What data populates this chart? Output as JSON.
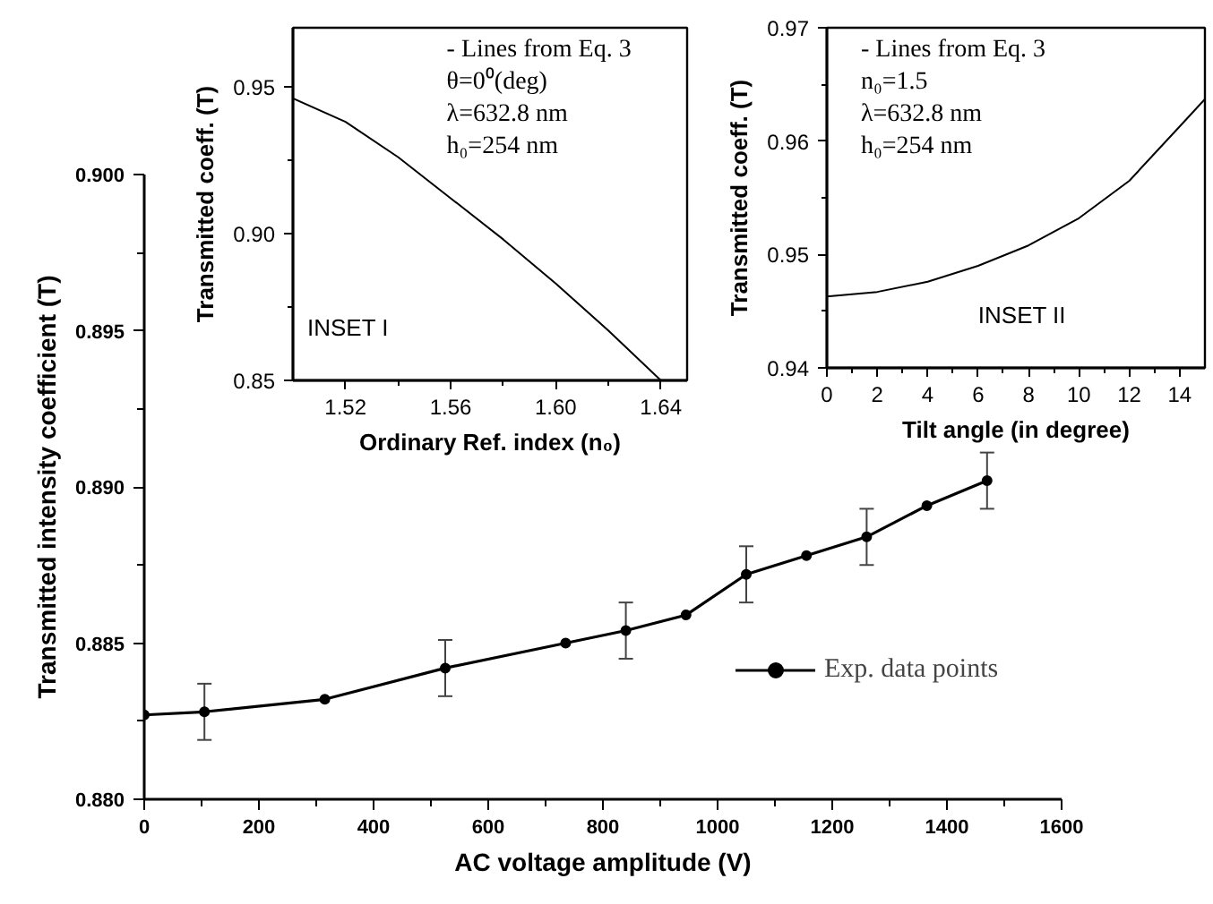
{
  "chart_data": [
    {
      "type": "line",
      "xlabel": "AC voltage amplitude (V)",
      "ylabel": "Transmitted intensity coefficient (T)",
      "x": [
        0,
        105,
        315,
        525,
        735,
        840,
        945,
        1050,
        1155,
        1260,
        1365,
        1470
      ],
      "series": [
        {
          "name": "Exp. data points",
          "color": "#000000",
          "values": [
            0.8827,
            0.8828,
            0.8832,
            0.8842,
            0.885,
            0.8854,
            0.8859,
            0.8872,
            0.8878,
            0.8884,
            0.8894,
            0.8902
          ],
          "errors": [
            null,
            0.0009,
            null,
            0.0009,
            null,
            0.0009,
            null,
            0.0009,
            null,
            0.0009,
            null,
            0.0009
          ]
        }
      ],
      "marker": "circle",
      "legend": "right",
      "xlim": [
        0,
        1600
      ],
      "ylim": [
        0.88,
        0.9
      ],
      "xticks": [
        0,
        {
          "value": 100,
          "label": null
        },
        200,
        {
          "value": 300,
          "label": null
        },
        400,
        {
          "value": 500,
          "label": null
        },
        600,
        {
          "value": 700,
          "label": null
        },
        800,
        {
          "value": 900,
          "label": null
        },
        1000,
        {
          "value": 1100,
          "label": null
        },
        1200,
        {
          "value": 1300,
          "label": null
        },
        1400,
        {
          "value": 1500,
          "label": null
        },
        1600
      ],
      "yticks": [
        {
          "value": 0.88,
          "label": "0.880"
        },
        {
          "value": 0.8825,
          "label": null
        },
        {
          "value": 0.885,
          "label": "0.885"
        },
        {
          "value": 0.8875,
          "label": null
        },
        {
          "value": 0.89,
          "label": "0.890"
        },
        {
          "value": 0.8925,
          "label": null
        },
        0.895,
        {
          "value": 0.8975,
          "label": null
        },
        {
          "value": 0.9,
          "label": "0.900"
        }
      ]
    },
    {
      "type": "line",
      "xlabel": "Ordinary Ref. index (n₀)",
      "ylabel": "Transmitted coeff. (T)",
      "x": [
        1.5,
        1.52,
        1.54,
        1.56,
        1.58,
        1.6,
        1.62,
        1.64
      ],
      "series": [
        {
          "color": "#000000",
          "values": [
            0.946,
            0.938,
            0.926,
            0.912,
            0.898,
            0.883,
            0.867,
            0.85
          ]
        }
      ],
      "xlim": [
        1.5,
        1.65
      ],
      "ylim": [
        0.85,
        0.97
      ],
      "xticks": [
        {
          "value": 1.52,
          "label": "1.52"
        },
        {
          "value": 1.54,
          "label": null
        },
        {
          "value": 1.56,
          "label": "1.56"
        },
        {
          "value": 1.58,
          "label": null
        },
        {
          "value": 1.6,
          "label": "1.60"
        },
        {
          "value": 1.62,
          "label": null
        },
        {
          "value": 1.64,
          "label": "1.64"
        }
      ],
      "yticks": [
        0.85,
        {
          "value": 0.875,
          "label": null
        },
        {
          "value": 0.9,
          "label": "0.90"
        },
        {
          "value": 0.925,
          "label": null
        },
        0.95
      ],
      "annotations": [
        "- Lines from Eq. 3",
        "θ=0⁰(deg)",
        "λ=632.8 nm",
        "h₀=254 nm",
        "INSET I"
      ]
    },
    {
      "type": "line",
      "xlabel": "Tilt angle (in degree)",
      "ylabel": "Transmitted coeff. (T)",
      "x": [
        0,
        2,
        4,
        6,
        8,
        10,
        12,
        14,
        15
      ],
      "series": [
        {
          "color": "#000000",
          "values": [
            0.9463,
            0.9467,
            0.9476,
            0.949,
            0.9508,
            0.9532,
            0.9565,
            0.9613,
            0.9637
          ]
        }
      ],
      "xlim": [
        0,
        15
      ],
      "ylim": [
        0.94,
        0.97
      ],
      "xticks": [
        0,
        {
          "value": 1,
          "label": null
        },
        2,
        {
          "value": 3,
          "label": null
        },
        4,
        {
          "value": 5,
          "label": null
        },
        6,
        {
          "value": 7,
          "label": null
        },
        8,
        {
          "value": 9,
          "label": null
        },
        10,
        {
          "value": 11,
          "label": null
        },
        12,
        {
          "value": 13,
          "label": null
        },
        14
      ],
      "yticks": [
        0.94,
        {
          "value": 0.945,
          "label": null
        },
        0.95,
        {
          "value": 0.955,
          "label": null
        },
        0.96,
        {
          "value": 0.965,
          "label": null
        },
        0.97
      ],
      "annotations": [
        "- Lines from Eq. 3",
        "n₀=1.5",
        "λ=632.8 nm",
        "h₀=254 nm",
        "INSET II"
      ]
    }
  ]
}
